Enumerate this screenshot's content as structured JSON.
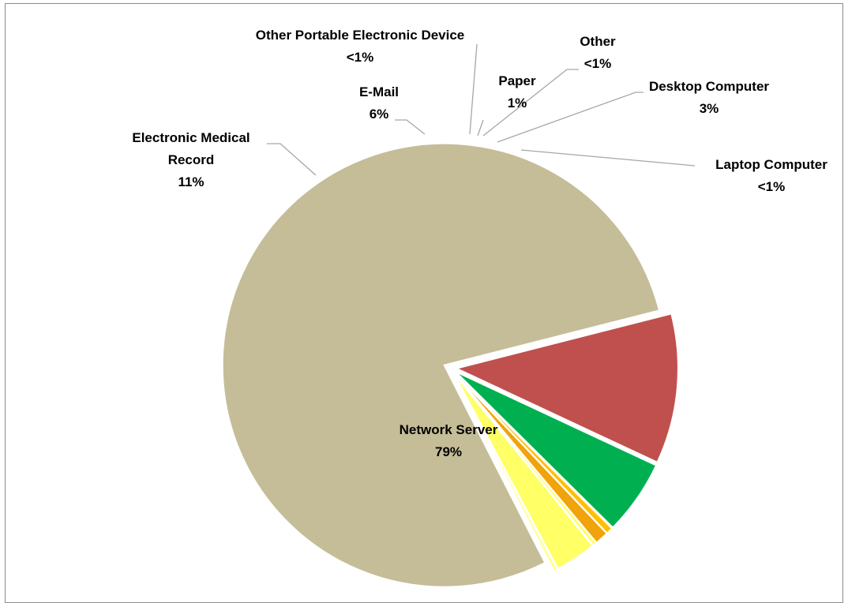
{
  "chart_data": {
    "type": "pie",
    "title": "",
    "slices": [
      {
        "label_lines": [
          "Network Server"
        ],
        "pct_label": "79%",
        "value": 79,
        "color": "#c4bd97"
      },
      {
        "label_lines": [
          "Electronic Medical",
          "Record"
        ],
        "pct_label": "11%",
        "value": 11,
        "color": "#c0504d"
      },
      {
        "label_lines": [
          "E-Mail"
        ],
        "pct_label": "6%",
        "value": 5.5,
        "color": "#00b050"
      },
      {
        "label_lines": [
          "Other Portable Electronic  Device"
        ],
        "pct_label": "<1%",
        "value": 0.5,
        "color": "#ffc000"
      },
      {
        "label_lines": [
          "Paper"
        ],
        "pct_label": "1%",
        "value": 1,
        "color": "#f0a30a"
      },
      {
        "label_lines": [
          "Other"
        ],
        "pct_label": "<1%",
        "value": 0.3,
        "color": "#ffff66"
      },
      {
        "label_lines": [
          "Desktop Computer"
        ],
        "pct_label": "3%",
        "value": 3,
        "color": "#ffff66"
      },
      {
        "label_lines": [
          "Laptop Computer"
        ],
        "pct_label": "<1%",
        "value": 0.3,
        "color": "#ffff99"
      }
    ],
    "legend": "none",
    "data_labels": "outside with leader lines"
  }
}
